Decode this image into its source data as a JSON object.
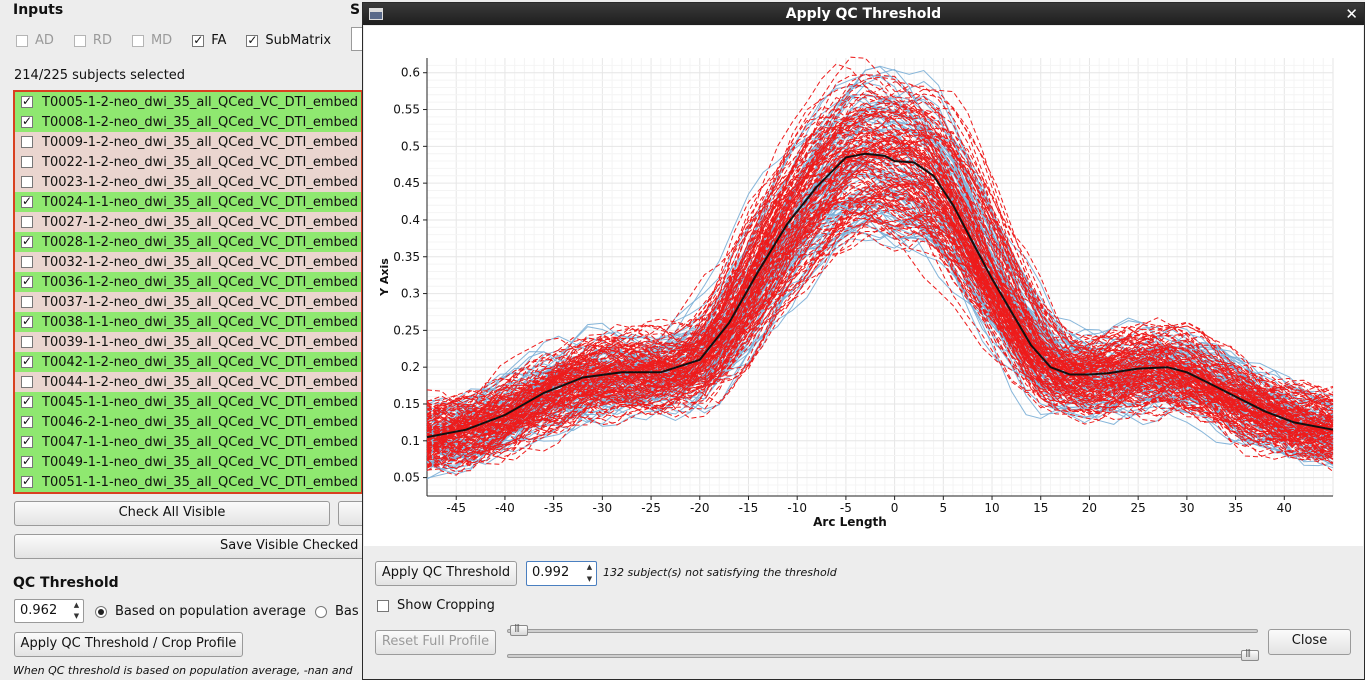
{
  "main": {
    "inputs_header": "Inputs",
    "second_header": "S",
    "inputs": [
      {
        "label": "AD",
        "checked": false,
        "enabled": false
      },
      {
        "label": "RD",
        "checked": false,
        "enabled": false
      },
      {
        "label": "MD",
        "checked": false,
        "enabled": false
      },
      {
        "label": "FA",
        "checked": true,
        "enabled": true
      },
      {
        "label": "SubMatrix",
        "checked": true,
        "enabled": true
      }
    ],
    "selected_count": "214/225 subjects selected",
    "subjects": [
      {
        "label": "T0005-1-2-neo_dwi_35_all_QCed_VC_DTI_embed",
        "checked": true
      },
      {
        "label": "T0008-1-2-neo_dwi_35_all_QCed_VC_DTI_embed",
        "checked": true
      },
      {
        "label": "T0009-1-2-neo_dwi_35_all_QCed_VC_DTI_embed",
        "checked": false
      },
      {
        "label": "T0022-1-2-neo_dwi_35_all_QCed_VC_DTI_embed",
        "checked": false
      },
      {
        "label": "T0023-1-2-neo_dwi_35_all_QCed_VC_DTI_embed",
        "checked": false
      },
      {
        "label": "T0024-1-1-neo_dwi_35_all_QCed_VC_DTI_embed",
        "checked": true
      },
      {
        "label": "T0027-1-2-neo_dwi_35_all_QCed_VC_DTI_embed",
        "checked": false
      },
      {
        "label": "T0028-1-2-neo_dwi_35_all_QCed_VC_DTI_embed",
        "checked": true
      },
      {
        "label": "T0032-1-2-neo_dwi_35_all_QCed_VC_DTI_embed",
        "checked": false
      },
      {
        "label": "T0036-1-2-neo_dwi_35_all_QCed_VC_DTI_embed",
        "checked": true
      },
      {
        "label": "T0037-1-2-neo_dwi_35_all_QCed_VC_DTI_embed",
        "checked": false
      },
      {
        "label": "T0038-1-1-neo_dwi_35_all_QCed_VC_DTI_embed",
        "checked": true
      },
      {
        "label": "T0039-1-1-neo_dwi_35_all_QCed_VC_DTI_embed",
        "checked": false
      },
      {
        "label": "T0042-1-2-neo_dwi_35_all_QCed_VC_DTI_embed",
        "checked": true
      },
      {
        "label": "T0044-1-2-neo_dwi_35_all_QCed_VC_DTI_embed",
        "checked": false
      },
      {
        "label": "T0045-1-1-neo_dwi_35_all_QCed_VC_DTI_embed",
        "checked": true
      },
      {
        "label": "T0046-2-1-neo_dwi_35_all_QCed_VC_DTI_embed",
        "checked": true
      },
      {
        "label": "T0047-1-1-neo_dwi_35_all_QCed_VC_DTI_embed",
        "checked": true
      },
      {
        "label": "T0049-1-1-neo_dwi_35_all_QCed_VC_DTI_embed",
        "checked": true
      },
      {
        "label": "T0051-1-1-neo_dwi_35_all_QCed_VC_DTI_embed",
        "checked": true
      }
    ],
    "check_all_label": "Check All Visible",
    "save_visible_label": "Save Visible Checked S",
    "qc_header": "QC Threshold",
    "qc_value": "0.962",
    "radio_population": "Based on population average",
    "radio_other": "Bas",
    "apply_crop_label": "Apply QC Threshold / Crop Profile",
    "note": "When QC threshold is based on population average, -nan and"
  },
  "dialog": {
    "title": "Apply QC Threshold",
    "apply_label": "Apply QC Threshold",
    "threshold_value": "0.992",
    "status": "132 subject(s) not satisfying the threshold",
    "show_cropping_label": "Show Cropping",
    "show_cropping_checked": false,
    "reset_label": "Reset Full Profile",
    "close_label": "Close",
    "crop_start_fraction": 0.0,
    "crop_end_fraction": 1.0
  },
  "chart_data": {
    "type": "line",
    "xlabel": "Arc Length",
    "ylabel": "Y Axis",
    "xlim": [
      -48,
      45
    ],
    "ylim": [
      0.025,
      0.62
    ],
    "x_ticks": [
      -45,
      -40,
      -35,
      -30,
      -25,
      -20,
      -15,
      -10,
      -5,
      0,
      5,
      10,
      15,
      20,
      25,
      30,
      35,
      40
    ],
    "y_ticks": [
      0.05,
      0.1,
      0.15,
      0.2,
      0.25,
      0.3,
      0.35,
      0.4,
      0.45,
      0.5,
      0.55,
      0.6
    ],
    "grid": true,
    "colors": {
      "failing": "#ee1c1c",
      "passing": "#7aaed6",
      "average": "#111111"
    },
    "series": [
      {
        "role": "average",
        "x": [
          -48,
          -44,
          -40,
          -36,
          -32,
          -28,
          -24,
          -20,
          -17,
          -14,
          -11,
          -8,
          -5,
          -3,
          -1,
          0,
          2,
          4,
          6,
          8,
          10,
          12,
          14,
          16,
          18,
          20,
          22,
          25,
          28,
          30,
          32,
          35,
          38,
          41,
          45
        ],
        "y": [
          0.105,
          0.115,
          0.135,
          0.165,
          0.186,
          0.193,
          0.193,
          0.21,
          0.26,
          0.33,
          0.395,
          0.445,
          0.485,
          0.49,
          0.487,
          0.48,
          0.478,
          0.46,
          0.42,
          0.37,
          0.32,
          0.275,
          0.23,
          0.2,
          0.19,
          0.19,
          0.192,
          0.198,
          0.2,
          0.193,
          0.18,
          0.16,
          0.14,
          0.125,
          0.115
        ]
      }
    ]
  }
}
